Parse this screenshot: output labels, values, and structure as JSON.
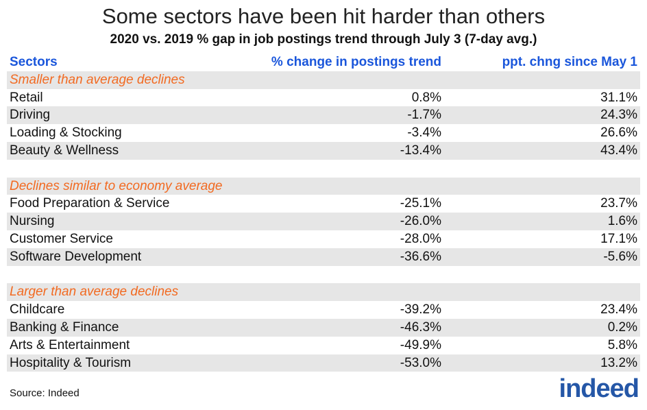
{
  "chart_data": {
    "type": "table",
    "title": "Some sectors have been hit harder than others",
    "subtitle": "2020 vs. 2019 % gap in job postings trend through July 3 (7-day avg.)",
    "columns": [
      "Sectors",
      "% change in postings trend",
      "ppt. chng since May 1"
    ],
    "groups": [
      {
        "label": "Smaller than average declines",
        "rows": [
          {
            "sector": "Retail",
            "change": "0.8%",
            "ppt": "31.1%"
          },
          {
            "sector": "Driving",
            "change": "-1.7%",
            "ppt": "24.3%"
          },
          {
            "sector": "Loading & Stocking",
            "change": "-3.4%",
            "ppt": "26.6%"
          },
          {
            "sector": "Beauty & Wellness",
            "change": "-13.4%",
            "ppt": "43.4%"
          }
        ]
      },
      {
        "label": "Declines similar to economy average",
        "rows": [
          {
            "sector": "Food Preparation & Service",
            "change": "-25.1%",
            "ppt": "23.7%"
          },
          {
            "sector": "Nursing",
            "change": "-26.0%",
            "ppt": "1.6%"
          },
          {
            "sector": "Customer Service",
            "change": "-28.0%",
            "ppt": "17.1%"
          },
          {
            "sector": "Software Development",
            "change": "-36.6%",
            "ppt": "-5.6%"
          }
        ]
      },
      {
        "label": "Larger than average declines",
        "rows": [
          {
            "sector": "Childcare",
            "change": "-39.2%",
            "ppt": "23.4%"
          },
          {
            "sector": "Banking & Finance",
            "change": "-46.3%",
            "ppt": "0.2%"
          },
          {
            "sector": "Arts & Entertainment",
            "change": "-49.9%",
            "ppt": "5.8%"
          },
          {
            "sector": "Hospitality & Tourism",
            "change": "-53.0%",
            "ppt": "13.2%"
          }
        ]
      }
    ],
    "source": "Source: Indeed",
    "logo_text": "indeed"
  },
  "colors": {
    "header": "#1a56db",
    "group_label": "#f26a21",
    "shade": "#e6e6e6",
    "logo": "#2557a7"
  }
}
